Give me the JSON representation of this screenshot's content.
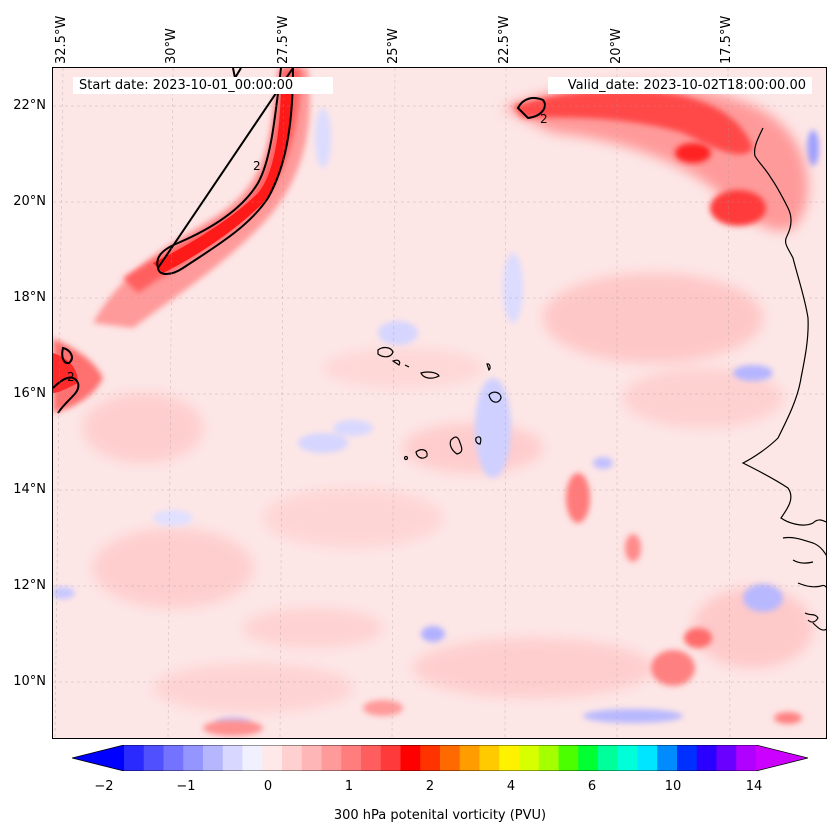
{
  "map": {
    "start_date": "Start date: 2023-10-01_00:00:00",
    "valid_date": "Valid_date: 2023-10-02T18:00:00.00",
    "contour_label": "2",
    "lon_labels": [
      "32.5°W",
      "30°W",
      "27.5°W",
      "25°W",
      "22.5°W",
      "20°W",
      "17.5°W"
    ],
    "lat_labels": [
      "22°N",
      "20°N",
      "18°N",
      "16°N",
      "14°N",
      "12°N",
      "10°N"
    ]
  },
  "colorbar": {
    "title": "300 hPa potenital vorticity (PVU)",
    "tick_labels": [
      "−2",
      "−1",
      "0",
      "1",
      "2",
      "4",
      "6",
      "10",
      "14"
    ],
    "level_colors": [
      "#0000ff",
      "#2a2aff",
      "#5050ff",
      "#7373ff",
      "#9595ff",
      "#b6b6ff",
      "#d7d7ff",
      "#f0f0ff",
      "#ffe8e8",
      "#ffd0d0",
      "#ffb6b6",
      "#ff9a9a",
      "#ff7d7d",
      "#ff5e5e",
      "#ff3a3a",
      "#ff0000",
      "#ff3300",
      "#ff6a00",
      "#ff9d00",
      "#ffcb00",
      "#fff200",
      "#d8ff00",
      "#a6ff00",
      "#4cff00",
      "#00ff33",
      "#00ff9b",
      "#00ffd8",
      "#00e5ff",
      "#008cff",
      "#0030ff",
      "#2a00ff",
      "#6a00ff",
      "#b000ff",
      "#cc00ff"
    ]
  }
}
